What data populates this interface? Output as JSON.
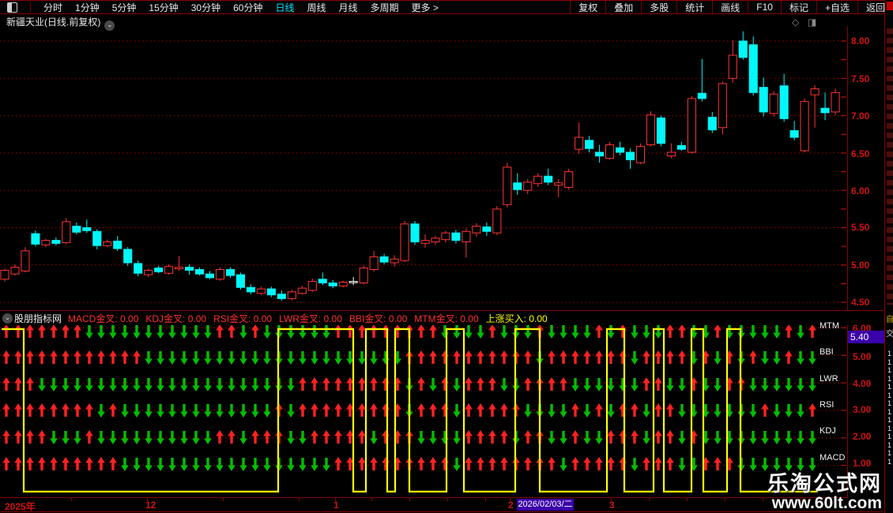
{
  "toolbar": {
    "left": [
      "分时",
      "1分钟",
      "5分钟",
      "15分钟",
      "30分钟",
      "60分钟",
      "日线",
      "周线",
      "月线",
      "多周期",
      "更多 >"
    ],
    "selected": "日线",
    "right": [
      "复权",
      "叠加",
      "多股",
      "统计",
      "画线",
      "F10",
      "标记",
      "+自选",
      "返回"
    ]
  },
  "title": {
    "text": "新疆天业(日线.前复权)"
  },
  "icons": {
    "chevron_down": "⌄",
    "diamond": "◇",
    "panel": "◨"
  },
  "indicator_header": {
    "source": "股朋指标网",
    "items": [
      "MACD金叉: 0.00",
      "KDJ金叉: 0.00",
      "RSI金叉: 0.00",
      "LWR金叉: 0.00",
      "BBI金叉: 0.00",
      "MTM金叉: 0.00"
    ],
    "highlight": "上涨买入: 0.00"
  },
  "x_axis": {
    "labels": [
      "2025年",
      "12",
      "1",
      "2",
      "3"
    ],
    "selected_date": "2026/02/03/二"
  },
  "watermark": {
    "line1": "乐淘公式网",
    "line2": "www.60lt.com"
  },
  "sidebar": {
    "char_top": "自",
    "char_2": "交",
    "digit": "1"
  },
  "chart_data": {
    "type": "candlestick",
    "title": "新疆天业 日线 前复权",
    "ylim": [
      4.5,
      8.0
    ],
    "y_ticks": [
      "8.00",
      "7.50",
      "7.00",
      "6.50",
      "6.00",
      "5.50",
      "5.00",
      "4.50"
    ],
    "grid": "dotted-red-horizontal",
    "up_color": "#ff3434",
    "down_color": "#00f8f8",
    "candles": [
      [
        4.81,
        4.95,
        4.78,
        4.93
      ],
      [
        4.88,
        5.01,
        4.86,
        4.97
      ],
      [
        4.92,
        5.24,
        4.9,
        5.19
      ],
      [
        5.42,
        5.46,
        5.25,
        5.28
      ],
      [
        5.27,
        5.35,
        5.24,
        5.33
      ],
      [
        5.33,
        5.37,
        5.26,
        5.29
      ],
      [
        5.3,
        5.63,
        5.28,
        5.58
      ],
      [
        5.52,
        5.57,
        5.41,
        5.44
      ],
      [
        5.5,
        5.61,
        5.43,
        5.46
      ],
      [
        5.45,
        5.48,
        5.21,
        5.26
      ],
      [
        5.26,
        5.34,
        5.24,
        5.31
      ],
      [
        5.32,
        5.39,
        5.19,
        5.22
      ],
      [
        5.21,
        5.24,
        4.99,
        5.03
      ],
      [
        5.02,
        5.06,
        4.85,
        4.89
      ],
      [
        4.87,
        4.95,
        4.84,
        4.93
      ],
      [
        4.96,
        4.99,
        4.89,
        4.91
      ],
      [
        4.89,
        5.01,
        4.87,
        4.98
      ],
      [
        4.95,
        5.12,
        4.92,
        4.97
      ],
      [
        4.97,
        5.01,
        4.87,
        4.93
      ],
      [
        4.94,
        4.97,
        4.86,
        4.88
      ],
      [
        4.88,
        4.92,
        4.81,
        4.83
      ],
      [
        4.81,
        4.97,
        4.79,
        4.94
      ],
      [
        4.94,
        4.97,
        4.83,
        4.86
      ],
      [
        4.87,
        4.9,
        4.67,
        4.7
      ],
      [
        4.7,
        4.74,
        4.61,
        4.64
      ],
      [
        4.62,
        4.71,
        4.6,
        4.68
      ],
      [
        4.68,
        4.71,
        4.57,
        4.6
      ],
      [
        4.61,
        4.66,
        4.52,
        4.55
      ],
      [
        4.55,
        4.67,
        4.53,
        4.64
      ],
      [
        4.62,
        4.72,
        4.6,
        4.69
      ],
      [
        4.66,
        4.82,
        4.64,
        4.78
      ],
      [
        4.81,
        4.9,
        4.73,
        4.76
      ],
      [
        4.76,
        4.8,
        4.69,
        4.72
      ],
      [
        4.72,
        4.79,
        4.7,
        4.77
      ],
      [
        4.78,
        4.84,
        4.73,
        4.78
      ],
      [
        4.76,
        4.99,
        4.74,
        4.96
      ],
      [
        4.94,
        5.19,
        4.91,
        5.11
      ],
      [
        5.11,
        5.15,
        5.01,
        5.04
      ],
      [
        5.03,
        5.13,
        4.98,
        5.08
      ],
      [
        5.06,
        5.59,
        5.04,
        5.55
      ],
      [
        5.55,
        5.59,
        5.27,
        5.31
      ],
      [
        5.29,
        5.41,
        5.23,
        5.33
      ],
      [
        5.31,
        5.39,
        5.27,
        5.36
      ],
      [
        5.34,
        5.46,
        5.3,
        5.43
      ],
      [
        5.43,
        5.47,
        5.29,
        5.33
      ],
      [
        5.31,
        5.49,
        5.1,
        5.45
      ],
      [
        5.43,
        5.56,
        5.38,
        5.52
      ],
      [
        5.51,
        5.57,
        5.39,
        5.45
      ],
      [
        5.43,
        5.79,
        5.4,
        5.75
      ],
      [
        5.81,
        6.37,
        5.77,
        6.31
      ],
      [
        6.1,
        6.23,
        5.94,
        6.01
      ],
      [
        6.0,
        6.15,
        5.95,
        6.11
      ],
      [
        6.09,
        6.23,
        6.05,
        6.19
      ],
      [
        6.19,
        6.29,
        6.07,
        6.11
      ],
      [
        6.07,
        6.15,
        5.91,
        6.1
      ],
      [
        6.04,
        6.29,
        6.01,
        6.25
      ],
      [
        6.55,
        6.91,
        6.49,
        6.71
      ],
      [
        6.67,
        6.73,
        6.51,
        6.56
      ],
      [
        6.51,
        6.61,
        6.37,
        6.46
      ],
      [
        6.43,
        6.65,
        6.41,
        6.61
      ],
      [
        6.57,
        6.65,
        6.47,
        6.51
      ],
      [
        6.51,
        6.56,
        6.29,
        6.41
      ],
      [
        6.37,
        6.63,
        6.35,
        6.59
      ],
      [
        6.61,
        7.06,
        6.59,
        7.01
      ],
      [
        6.97,
        7.0,
        6.59,
        6.63
      ],
      [
        6.46,
        6.63,
        6.43,
        6.51
      ],
      [
        6.6,
        6.65,
        6.53,
        6.55
      ],
      [
        6.51,
        7.26,
        6.49,
        7.23
      ],
      [
        7.3,
        7.76,
        7.19,
        7.23
      ],
      [
        6.98,
        7.05,
        6.77,
        6.81
      ],
      [
        6.84,
        7.46,
        6.75,
        7.43
      ],
      [
        7.5,
        8.01,
        7.44,
        7.81
      ],
      [
        8.0,
        8.13,
        7.75,
        7.78
      ],
      [
        7.95,
        8.06,
        7.27,
        7.31
      ],
      [
        7.38,
        7.51,
        6.99,
        7.05
      ],
      [
        7.03,
        7.33,
        6.99,
        7.29
      ],
      [
        7.4,
        7.56,
        6.92,
        6.96
      ],
      [
        6.8,
        6.93,
        6.67,
        6.71
      ],
      [
        6.53,
        7.23,
        6.51,
        7.19
      ],
      [
        7.28,
        7.41,
        6.84,
        7.36
      ],
      [
        7.1,
        7.31,
        6.94,
        7.04
      ],
      [
        7.05,
        7.36,
        7.01,
        7.31
      ]
    ],
    "white_doji_index": 34,
    "indicator": {
      "ylim": [
        0,
        6
      ],
      "y_ticks": [
        "6.00",
        "5.00",
        "4.00",
        "3.00",
        "2.00",
        "1.00"
      ],
      "legend": "red up arrow = 金叉(bullish), green down arrow = 死叉(bearish)",
      "rows": [
        {
          "label": "MTM",
          "pattern": "uuuuuuuddddddddddduududddddduuuuuuuuudddduddduddddudubddduuddudddddudu"
        },
        {
          "label": "BBI",
          "pattern": "uuuuuuuuuuuudddddddddddddddddddddduuuuuuuuuuuduuuuuuuduuuududududduddudu"
        },
        {
          "label": "LWR",
          "pattern": "uuudddddddddddddddddddddduuuuuuuuudududuuudduuuudddddduuddudduudddddddddd"
        },
        {
          "label": "RSI",
          "pattern": "uuuuuuuudud dddddddddddduduuuuuuuuuduuuduuuuuddddududuuduudddddddudddud"
        },
        {
          "label": "KDJ",
          "pattern": "uuuudddudddddddddduuduuudduuuuuduuudddduuuuduuddudduuuduududddddddddddu"
        },
        {
          "label": "MACD",
          "pattern": "uuuuuuuuuudddddddddddddddddduuuuuuuuuuduuuuuuuuduuuuuduuudduuuddddddddd"
        }
      ],
      "signal_line": {
        "name": "上涨买入",
        "color": "#ffff00",
        "points": [
          [
            2,
            5.95
          ],
          [
            30,
            5.95
          ],
          [
            30,
            0.05
          ],
          [
            352,
            0.05
          ],
          [
            352,
            5.95
          ],
          [
            447,
            5.95
          ],
          [
            447,
            0.05
          ],
          [
            463,
            0.05
          ],
          [
            463,
            5.95
          ],
          [
            490,
            5.95
          ],
          [
            490,
            0.05
          ],
          [
            500,
            0.05
          ],
          [
            500,
            5.95
          ],
          [
            518,
            5.95
          ],
          [
            518,
            0.05
          ],
          [
            565,
            0.05
          ],
          [
            565,
            5.95
          ],
          [
            587,
            5.95
          ],
          [
            587,
            0.05
          ],
          [
            652,
            0.05
          ],
          [
            652,
            5.95
          ],
          [
            683,
            5.95
          ],
          [
            683,
            0.05
          ],
          [
            768,
            0.05
          ],
          [
            768,
            5.95
          ],
          [
            790,
            5.95
          ],
          [
            790,
            0.05
          ],
          [
            827,
            0.05
          ],
          [
            827,
            5.95
          ],
          [
            840,
            5.95
          ],
          [
            840,
            0.05
          ],
          [
            875,
            0.05
          ],
          [
            875,
            5.95
          ],
          [
            890,
            5.95
          ],
          [
            890,
            0.05
          ],
          [
            920,
            0.05
          ],
          [
            920,
            5.95
          ],
          [
            937,
            5.95
          ],
          [
            937,
            0.05
          ],
          [
            1035,
            0.05
          ]
        ]
      },
      "last_value_badge": "5.40"
    }
  }
}
